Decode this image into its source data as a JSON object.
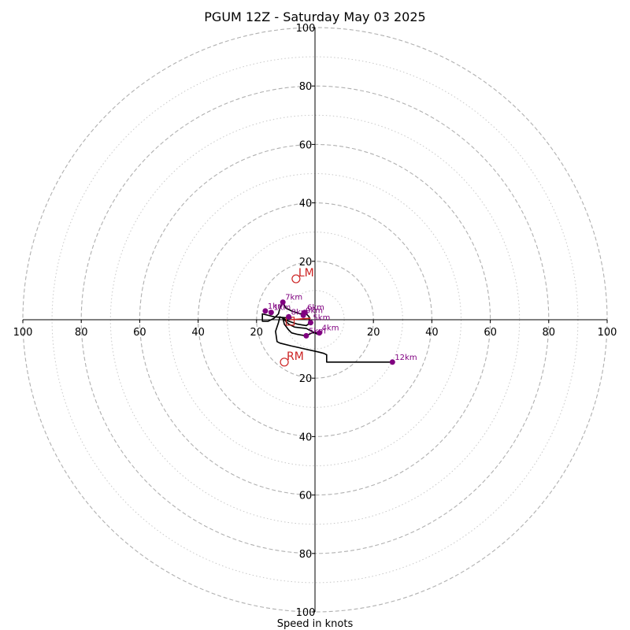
{
  "chart_data": {
    "type": "line",
    "title": "PGUM 12Z - Saturday May 03 2025",
    "xlabel": "Speed in knots",
    "xlim": [
      -100,
      100
    ],
    "ylim": [
      -100,
      100
    ],
    "rings": {
      "major": [
        20,
        40,
        60,
        80,
        100
      ],
      "minor": [
        10,
        30,
        50,
        70,
        90
      ]
    },
    "x_ticks": [
      {
        "value": -100,
        "label": "100"
      },
      {
        "value": -80,
        "label": "80"
      },
      {
        "value": -60,
        "label": "60"
      },
      {
        "value": -40,
        "label": "40"
      },
      {
        "value": -20,
        "label": "20"
      },
      {
        "value": 20,
        "label": "20"
      },
      {
        "value": 40,
        "label": "40"
      },
      {
        "value": 60,
        "label": "60"
      },
      {
        "value": 80,
        "label": "80"
      },
      {
        "value": 100,
        "label": "100"
      }
    ],
    "y_ticks": [
      {
        "value": 100,
        "label": "100"
      },
      {
        "value": 80,
        "label": "80"
      },
      {
        "value": 60,
        "label": "60"
      },
      {
        "value": 40,
        "label": "40"
      },
      {
        "value": 20,
        "label": "20"
      },
      {
        "value": -20,
        "label": "20"
      },
      {
        "value": -40,
        "label": "40"
      },
      {
        "value": -60,
        "label": "60"
      },
      {
        "value": -80,
        "label": "80"
      },
      {
        "value": -100,
        "label": "100"
      }
    ],
    "hodograph": {
      "color": "#000000",
      "points": [
        [
          -8,
          0.5
        ],
        [
          -14,
          1
        ],
        [
          -16,
          1.5
        ],
        [
          -18,
          2
        ],
        [
          -18,
          1
        ],
        [
          -18,
          -0.5
        ],
        [
          -16,
          -0.5
        ],
        [
          -14,
          0.5
        ],
        [
          -12.5,
          2
        ],
        [
          -12,
          4
        ],
        [
          -11,
          6
        ],
        [
          -10,
          4
        ],
        [
          -8,
          3
        ],
        [
          -5,
          2
        ],
        [
          -3.5,
          2.5
        ],
        [
          -2,
          1
        ],
        [
          -2,
          -0.5
        ],
        [
          -1.5,
          -1
        ],
        [
          -3,
          -2
        ],
        [
          -6,
          -1.5
        ],
        [
          -9,
          -0.5
        ],
        [
          -11,
          0.5
        ],
        [
          -10.5,
          -1.5
        ],
        [
          -9,
          -3.5
        ],
        [
          -8,
          -4.5
        ],
        [
          -6,
          -5
        ],
        [
          -3,
          -5.5
        ],
        [
          -1,
          -4.5
        ],
        [
          1,
          -4.5
        ],
        [
          1,
          -5
        ],
        [
          -2,
          -3.5
        ],
        [
          -3,
          -3
        ],
        [
          -7,
          -2.5
        ],
        [
          -9,
          -1.5
        ],
        [
          -10,
          -0.5
        ],
        [
          -11,
          0.5
        ],
        [
          -12,
          1
        ],
        [
          -12.5,
          -1
        ],
        [
          -13.5,
          -4
        ],
        [
          -13,
          -7.5
        ],
        [
          -12,
          -8
        ],
        [
          -8,
          -9
        ],
        [
          1,
          -11
        ],
        [
          3,
          -11.5
        ],
        [
          4,
          -12
        ],
        [
          4,
          -14.5
        ],
        [
          26.5,
          -14.5
        ]
      ]
    },
    "height_markers": {
      "color": "#800080",
      "points": [
        {
          "x": -17,
          "y": 3,
          "label": "1km"
        },
        {
          "x": -15,
          "y": 2.5,
          "label": "1km"
        },
        {
          "x": 1.5,
          "y": -4.5,
          "label": "4km"
        },
        {
          "x": -3,
          "y": -5.5,
          "label": "5km"
        },
        {
          "x": -1.5,
          "y": -1,
          "label": "5km"
        },
        {
          "x": -3.5,
          "y": 2.5,
          "label": "6km"
        },
        {
          "x": -11,
          "y": 6,
          "label": "7km"
        },
        {
          "x": -4,
          "y": 1.5,
          "label": "9km"
        },
        {
          "x": -9,
          "y": 1,
          "label": "8km"
        },
        {
          "x": 26.5,
          "y": -14.5,
          "label": "12km"
        }
      ]
    },
    "storm_motion": {
      "color": "#cc2222",
      "left_mover": {
        "label": "LM",
        "x": -6.5,
        "y": 14
      },
      "right_mover": {
        "label": "RM",
        "x": -10.5,
        "y": -14.5
      },
      "mean_wind": {
        "x": -8.5,
        "y": -0.5
      },
      "shear_vector": {
        "from": [
          -8.5,
          0
        ],
        "to": [
          -1.5,
          0.5
        ]
      }
    }
  }
}
